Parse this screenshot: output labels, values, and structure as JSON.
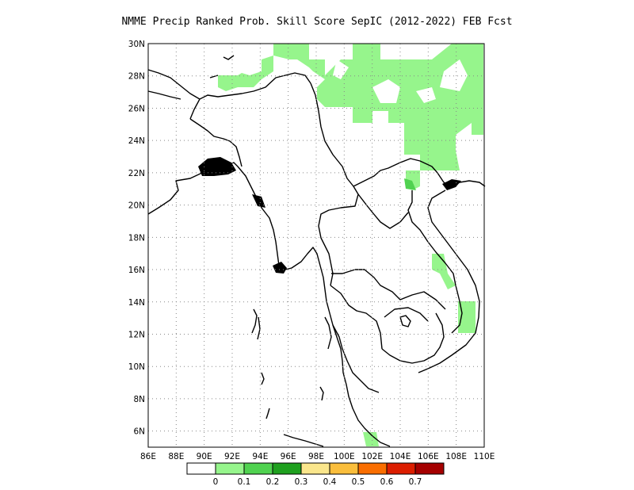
{
  "title": "NMME Precip Ranked Prob. Skill Score SepIC (2012-2022) FEB Fcst",
  "map": {
    "lon_range": [
      86,
      110
    ],
    "lat_range": [
      5,
      30
    ],
    "lat_ticks": [
      "30N",
      "28N",
      "26N",
      "24N",
      "22N",
      "20N",
      "18N",
      "16N",
      "14N",
      "12N",
      "10N",
      "8N",
      "6N"
    ],
    "lon_ticks": [
      "86E",
      "88E",
      "90E",
      "92E",
      "94E",
      "96E",
      "98E",
      "100E",
      "102E",
      "104E",
      "106E",
      "108E",
      "110E"
    ],
    "grid": "dotted",
    "coastline_color": "#000000"
  },
  "colorbar": {
    "colors": [
      "#ffffff",
      "#96f58c",
      "#50d250",
      "#1ea01e",
      "#fae68c",
      "#fabe3c",
      "#fa6e00",
      "#dc1e00",
      "#a50000"
    ],
    "labels": [
      "0",
      "0.1",
      "0.2",
      "0.3",
      "0.4",
      "0.5",
      "0.6",
      "0.7"
    ]
  },
  "skill_regions": [
    {
      "name": "north-myanmar-tibet",
      "level": "0-0.1",
      "color": "#96f58c"
    },
    {
      "name": "yunnan-guangxi",
      "level": "0-0.1",
      "color": "#96f58c"
    },
    {
      "name": "laos-vietnam-border",
      "level": "0.1-0.2",
      "color": "#50d250"
    },
    {
      "name": "central-vietnam",
      "level": "0-0.1",
      "color": "#96f58c"
    },
    {
      "name": "south-vietnam",
      "level": "0-0.1",
      "color": "#96f58c"
    },
    {
      "name": "malay-peninsula-south",
      "level": "0-0.1",
      "color": "#96f58c"
    }
  ]
}
